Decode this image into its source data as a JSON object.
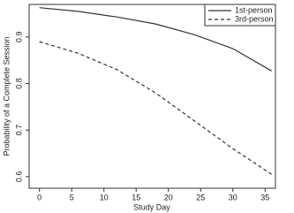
{
  "chart_data": {
    "type": "line",
    "x_label": "Study Day",
    "y_label": "Probability of a Complete Session",
    "x": [
      0,
      6,
      12,
      18,
      24,
      30,
      36
    ],
    "series": [
      {
        "name": "1st-person",
        "color": "#333333",
        "style": "solid",
        "values": [
          0.963,
          0.955,
          0.943,
          0.928,
          0.905,
          0.875,
          0.827
        ]
      },
      {
        "name": "3rd-person",
        "color": "#333333",
        "style": "dashed",
        "values": [
          0.89,
          0.865,
          0.83,
          0.78,
          0.72,
          0.66,
          0.605
        ]
      }
    ],
    "xlim": [
      -1.6,
      36.6
    ],
    "ylim": [
      0.575,
      0.97
    ],
    "xticks": [
      0,
      5,
      10,
      15,
      20,
      25,
      30,
      35
    ],
    "yticks": [
      0.6,
      0.7,
      0.8,
      0.9
    ],
    "legend": "top-right"
  }
}
